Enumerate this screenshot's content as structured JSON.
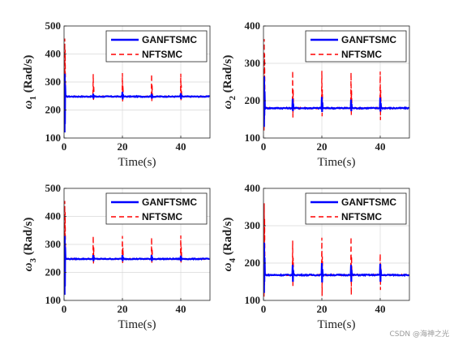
{
  "watermark": "CSDN @海神之光",
  "colors": {
    "ganf": "#0000ff",
    "nft": "#ff0000",
    "grid": "#d9d9d9",
    "axis": "#262626"
  },
  "chart_data": [
    {
      "type": "line",
      "ylabel_symbol": "ω",
      "ylabel_sub": "1",
      "ylabel_unit": " (Rad/s)",
      "xlabel": "Time(s)",
      "xlim": [
        0,
        50
      ],
      "ylim": [
        100,
        500
      ],
      "xticks": [
        0,
        20,
        40
      ],
      "yticks": [
        100,
        200,
        300,
        400,
        500
      ],
      "grid": true,
      "legend": "top-right",
      "baseline": 248,
      "series": [
        {
          "name": "GANFTSMC",
          "style": "solid",
          "initial_range": [
            120,
            330
          ],
          "spikes": [
            {
              "t": 10,
              "hi": 258,
              "lo": 241
            },
            {
              "t": 20,
              "hi": 265,
              "lo": 238
            },
            {
              "t": 30,
              "hi": 258,
              "lo": 241
            },
            {
              "t": 40,
              "hi": 260,
              "lo": 239
            }
          ]
        },
        {
          "name": "NFTSMC",
          "style": "dashed",
          "initial_range": [
            130,
            455
          ],
          "spikes": [
            {
              "t": 10,
              "hi": 328,
              "lo": 232
            },
            {
              "t": 20,
              "hi": 332,
              "lo": 230
            },
            {
              "t": 30,
              "hi": 328,
              "lo": 232
            },
            {
              "t": 40,
              "hi": 330,
              "lo": 235
            }
          ]
        }
      ]
    },
    {
      "type": "line",
      "ylabel_symbol": "ω",
      "ylabel_sub": "2",
      "ylabel_unit": " (Rad/s)",
      "xlabel": "Time(s)",
      "xlim": [
        0,
        50
      ],
      "ylim": [
        100,
        400
      ],
      "xticks": [
        0,
        20,
        40
      ],
      "yticks": [
        100,
        200,
        300,
        400
      ],
      "grid": true,
      "legend": "top-right",
      "baseline": 180,
      "series": [
        {
          "name": "GANFTSMC",
          "style": "solid",
          "initial_range": [
            130,
            265
          ],
          "spikes": [
            {
              "t": 10,
              "hi": 205,
              "lo": 172
            },
            {
              "t": 20,
              "hi": 210,
              "lo": 170
            },
            {
              "t": 30,
              "hi": 203,
              "lo": 172
            },
            {
              "t": 40,
              "hi": 208,
              "lo": 171
            }
          ]
        },
        {
          "name": "NFTSMC",
          "style": "dashed",
          "initial_range": [
            120,
            365
          ],
          "spikes": [
            {
              "t": 10,
              "hi": 280,
              "lo": 155
            },
            {
              "t": 20,
              "hi": 280,
              "lo": 158
            },
            {
              "t": 30,
              "hi": 275,
              "lo": 160
            },
            {
              "t": 40,
              "hi": 278,
              "lo": 148
            }
          ]
        }
      ]
    },
    {
      "type": "line",
      "ylabel_symbol": "ω",
      "ylabel_sub": "3",
      "ylabel_unit": " (Rad/s)",
      "xlabel": "Time(s)",
      "xlim": [
        0,
        50
      ],
      "ylim": [
        100,
        500
      ],
      "xticks": [
        0,
        20,
        40
      ],
      "yticks": [
        100,
        200,
        300,
        400,
        500
      ],
      "grid": true,
      "legend": "top-right",
      "baseline": 248,
      "series": [
        {
          "name": "GANFTSMC",
          "style": "solid",
          "initial_range": [
            120,
            330
          ],
          "spikes": [
            {
              "t": 10,
              "hi": 262,
              "lo": 240
            },
            {
              "t": 20,
              "hi": 262,
              "lo": 240
            },
            {
              "t": 30,
              "hi": 262,
              "lo": 240
            },
            {
              "t": 40,
              "hi": 260,
              "lo": 240
            }
          ]
        },
        {
          "name": "NFTSMC",
          "style": "dashed",
          "initial_range": [
            130,
            455
          ],
          "spikes": [
            {
              "t": 10,
              "hi": 330,
              "lo": 232
            },
            {
              "t": 20,
              "hi": 330,
              "lo": 232
            },
            {
              "t": 30,
              "hi": 325,
              "lo": 232
            },
            {
              "t": 40,
              "hi": 332,
              "lo": 235
            }
          ]
        }
      ]
    },
    {
      "type": "line",
      "ylabel_symbol": "ω",
      "ylabel_sub": "4",
      "ylabel_unit": " (Rad/s)",
      "xlabel": "Time(s)",
      "xlim": [
        0,
        50
      ],
      "ylim": [
        100,
        400
      ],
      "xticks": [
        0,
        20,
        40
      ],
      "yticks": [
        100,
        200,
        300,
        400
      ],
      "grid": true,
      "legend": "top-right",
      "baseline": 168,
      "series": [
        {
          "name": "GANFTSMC",
          "style": "solid",
          "initial_range": [
            120,
            255
          ],
          "spikes": [
            {
              "t": 10,
              "hi": 195,
              "lo": 150
            },
            {
              "t": 20,
              "hi": 200,
              "lo": 148
            },
            {
              "t": 30,
              "hi": 195,
              "lo": 150
            },
            {
              "t": 40,
              "hi": 198,
              "lo": 150
            }
          ]
        },
        {
          "name": "NFTSMC",
          "style": "dashed",
          "initial_range": [
            110,
            360
          ],
          "spikes": [
            {
              "t": 10,
              "hi": 260,
              "lo": 135
            },
            {
              "t": 20,
              "hi": 268,
              "lo": 112
            },
            {
              "t": 30,
              "hi": 270,
              "lo": 115
            },
            {
              "t": 40,
              "hi": 225,
              "lo": 128
            }
          ]
        }
      ]
    }
  ]
}
